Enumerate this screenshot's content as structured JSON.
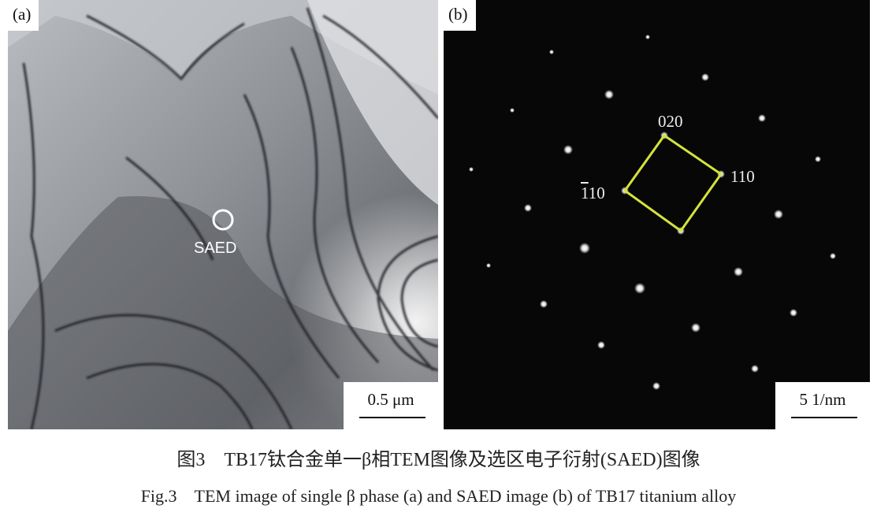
{
  "panel_a": {
    "label": "(a)",
    "circle_label": "SAED",
    "scale_bar": "0.5 μm"
  },
  "panel_b": {
    "label": "(b)",
    "indices": {
      "top": "020",
      "right": "110",
      "left_digits": "110",
      "left_bar_digit": "1"
    },
    "scale_bar": "5 1/nm",
    "unit_cell_color": "#d4e43a"
  },
  "caption": {
    "chinese": "图3　TB17钛合金单一β相TEM图像及选区电子衍射(SAED)图像",
    "english": "Fig.3　TEM image of single β phase (a) and SAED image (b) of TB17 titanium alloy"
  }
}
